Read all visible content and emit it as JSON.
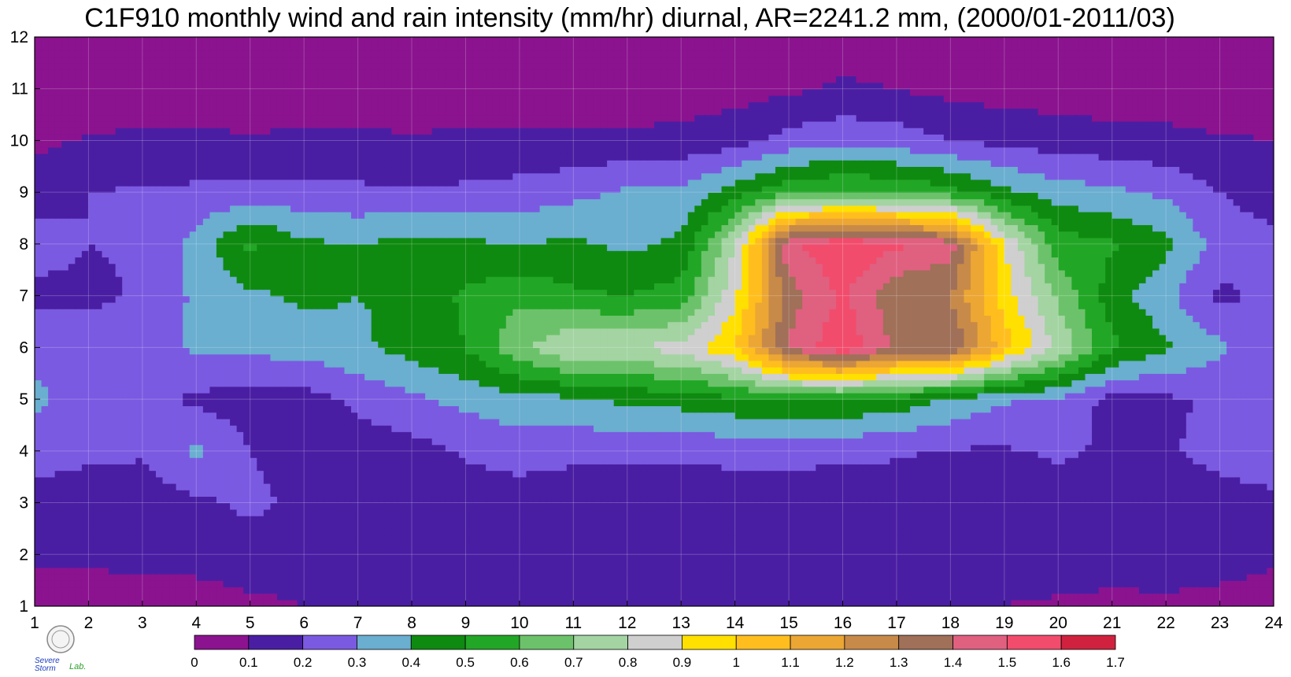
{
  "chart_data": {
    "type": "heatmap",
    "subtype": "filled-contour",
    "title": "C1F910 monthly wind and rain intensity (mm/hr) diurnal, AR=2241.2 mm, (2000/01-2011/03)",
    "xlabel": "",
    "ylabel": "",
    "x": [
      1,
      2,
      3,
      4,
      5,
      6,
      7,
      8,
      9,
      10,
      11,
      12,
      13,
      14,
      15,
      16,
      17,
      18,
      19,
      20,
      21,
      22,
      23,
      24
    ],
    "y": [
      1,
      2,
      3,
      4,
      5,
      6,
      7,
      8,
      9,
      10,
      11,
      12
    ],
    "xlim": [
      1,
      24
    ],
    "ylim": [
      1,
      12
    ],
    "x_ticks": [
      "1",
      "2",
      "3",
      "4",
      "5",
      "6",
      "7",
      "8",
      "9",
      "10",
      "11",
      "12",
      "13",
      "14",
      "15",
      "16",
      "17",
      "18",
      "19",
      "20",
      "21",
      "22",
      "23",
      "24"
    ],
    "y_ticks": [
      "1",
      "2",
      "3",
      "4",
      "5",
      "6",
      "7",
      "8",
      "9",
      "10",
      "11",
      "12"
    ],
    "grid": true,
    "contour_line_color": "#f2a01c",
    "levels": [
      0,
      0.1,
      0.2,
      0.3,
      0.4,
      0.5,
      0.6,
      0.7,
      0.8,
      0.9,
      1,
      1.1,
      1.2,
      1.3,
      1.4,
      1.5,
      1.6,
      1.7
    ],
    "colorbar": {
      "orientation": "horizontal",
      "placement": "bottom",
      "tick_labels": [
        "0",
        "0.1",
        "0.2",
        "0.3",
        "0.4",
        "0.5",
        "0.6",
        "0.7",
        "0.8",
        "0.9",
        "1",
        "1.1",
        "1.2",
        "1.3",
        "1.4",
        "1.5",
        "1.6",
        "1.7"
      ],
      "colors": [
        "#8b138f",
        "#4a1ea3",
        "#7b5ae2",
        "#6aaed0",
        "#0f8a10",
        "#22a626",
        "#6cc26a",
        "#a3d4a2",
        "#cfcfcf",
        "#ffe000",
        "#ffbe1e",
        "#eca634",
        "#c88a48",
        "#a07058",
        "#e06080",
        "#f24c6c",
        "#d0223e"
      ]
    },
    "values": [
      [
        0.05,
        0.04,
        0.06,
        0.06,
        0.08,
        0.1,
        0.11,
        0.12,
        0.12,
        0.12,
        0.12,
        0.12,
        0.12,
        0.12,
        0.12,
        0.12,
        0.12,
        0.12,
        0.1,
        0.08,
        0.07,
        0.07,
        0.06,
        0.05
      ],
      [
        0.12,
        0.12,
        0.13,
        0.13,
        0.15,
        0.14,
        0.15,
        0.18,
        0.15,
        0.12,
        0.1,
        0.1,
        0.11,
        0.1,
        0.12,
        0.12,
        0.11,
        0.11,
        0.13,
        0.18,
        0.15,
        0.18,
        0.15,
        0.12
      ],
      [
        0.15,
        0.15,
        0.15,
        0.18,
        0.22,
        0.18,
        0.15,
        0.15,
        0.15,
        0.14,
        0.13,
        0.13,
        0.13,
        0.14,
        0.14,
        0.15,
        0.15,
        0.16,
        0.16,
        0.17,
        0.16,
        0.16,
        0.16,
        0.17
      ],
      [
        0.25,
        0.22,
        0.21,
        0.32,
        0.2,
        0.15,
        0.15,
        0.16,
        0.21,
        0.25,
        0.23,
        0.22,
        0.22,
        0.23,
        0.23,
        0.22,
        0.21,
        0.19,
        0.19,
        0.21,
        0.19,
        0.19,
        0.23,
        0.27
      ],
      [
        0.32,
        0.26,
        0.24,
        0.18,
        0.15,
        0.16,
        0.22,
        0.28,
        0.33,
        0.36,
        0.38,
        0.42,
        0.44,
        0.48,
        0.5,
        0.5,
        0.46,
        0.38,
        0.31,
        0.29,
        0.16,
        0.18,
        0.22,
        0.25
      ],
      [
        0.28,
        0.25,
        0.25,
        0.32,
        0.33,
        0.34,
        0.38,
        0.44,
        0.5,
        0.68,
        0.8,
        0.8,
        0.84,
        1.0,
        1.42,
        1.58,
        1.38,
        1.4,
        1.05,
        0.78,
        0.52,
        0.42,
        0.32,
        0.22
      ],
      [
        0.17,
        0.18,
        0.21,
        0.32,
        0.38,
        0.42,
        0.4,
        0.42,
        0.52,
        0.58,
        0.52,
        0.5,
        0.54,
        0.88,
        1.35,
        1.52,
        1.32,
        1.3,
        0.95,
        0.68,
        0.45,
        0.32,
        0.18,
        0.22
      ],
      [
        0.25,
        0.2,
        0.21,
        0.34,
        0.52,
        0.42,
        0.4,
        0.43,
        0.42,
        0.4,
        0.42,
        0.38,
        0.42,
        0.8,
        1.48,
        1.58,
        1.52,
        1.45,
        0.9,
        0.55,
        0.51,
        0.43,
        0.25,
        0.23
      ],
      [
        0.14,
        0.2,
        0.21,
        0.22,
        0.24,
        0.23,
        0.22,
        0.21,
        0.22,
        0.24,
        0.27,
        0.32,
        0.33,
        0.45,
        0.58,
        0.62,
        0.6,
        0.54,
        0.43,
        0.35,
        0.32,
        0.28,
        0.2,
        0.15
      ],
      [
        0.08,
        0.11,
        0.12,
        0.12,
        0.11,
        0.12,
        0.12,
        0.11,
        0.12,
        0.12,
        0.12,
        0.12,
        0.13,
        0.16,
        0.24,
        0.27,
        0.25,
        0.2,
        0.17,
        0.15,
        0.14,
        0.13,
        0.11,
        0.1
      ],
      [
        0.03,
        0.03,
        0.04,
        0.04,
        0.04,
        0.04,
        0.04,
        0.04,
        0.04,
        0.04,
        0.04,
        0.04,
        0.05,
        0.06,
        0.08,
        0.12,
        0.1,
        0.07,
        0.06,
        0.05,
        0.04,
        0.04,
        0.04,
        0.03
      ],
      [
        0.02,
        0.02,
        0.02,
        0.02,
        0.02,
        0.02,
        0.02,
        0.02,
        0.02,
        0.02,
        0.02,
        0.02,
        0.02,
        0.02,
        0.03,
        0.03,
        0.03,
        0.02,
        0.02,
        0.02,
        0.02,
        0.02,
        0.02,
        0.02
      ]
    ]
  },
  "logo": {
    "label_severe": "Severe",
    "label_storm": "Storm",
    "label_lab": "Lab."
  }
}
